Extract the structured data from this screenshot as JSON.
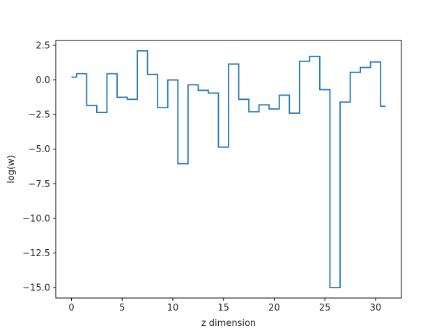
{
  "chart_data": {
    "type": "line",
    "drawstyle": "steps-mid",
    "title": "",
    "xlabel": "z dimension",
    "ylabel": "log(w)",
    "xlim": [
      -1.55,
      32.55
    ],
    "ylim": [
      -15.75,
      2.85
    ],
    "xticks": [
      0,
      5,
      10,
      15,
      20,
      25,
      30
    ],
    "xtick_labels": [
      "0",
      "5",
      "10",
      "15",
      "20",
      "25",
      "30"
    ],
    "yticks": [
      2.5,
      0.0,
      -2.5,
      -5.0,
      -7.5,
      -10.0,
      -12.5,
      -15.0
    ],
    "ytick_labels": [
      "2.5",
      "0.0",
      "−2.5",
      "−5.0",
      "−7.5",
      "−10.0",
      "−12.5",
      "−15.0"
    ],
    "grid": false,
    "legend": null,
    "series": [
      {
        "color": "#1f77b4",
        "x": [
          0,
          1,
          2,
          3,
          4,
          5,
          6,
          7,
          8,
          9,
          10,
          11,
          12,
          13,
          14,
          15,
          16,
          17,
          18,
          19,
          20,
          21,
          22,
          23,
          24,
          25,
          26,
          27,
          28,
          29,
          30,
          31
        ],
        "y": [
          0.2,
          0.45,
          -1.85,
          -2.35,
          0.45,
          -1.25,
          -1.4,
          2.1,
          0.4,
          -2.0,
          0.0,
          -6.05,
          -0.35,
          -0.75,
          -0.95,
          -4.85,
          1.15,
          -1.4,
          -2.3,
          -1.8,
          -2.1,
          -1.1,
          -2.4,
          1.35,
          1.7,
          -0.7,
          -15.0,
          -1.6,
          0.55,
          0.9,
          1.3,
          -1.9
        ]
      }
    ]
  }
}
